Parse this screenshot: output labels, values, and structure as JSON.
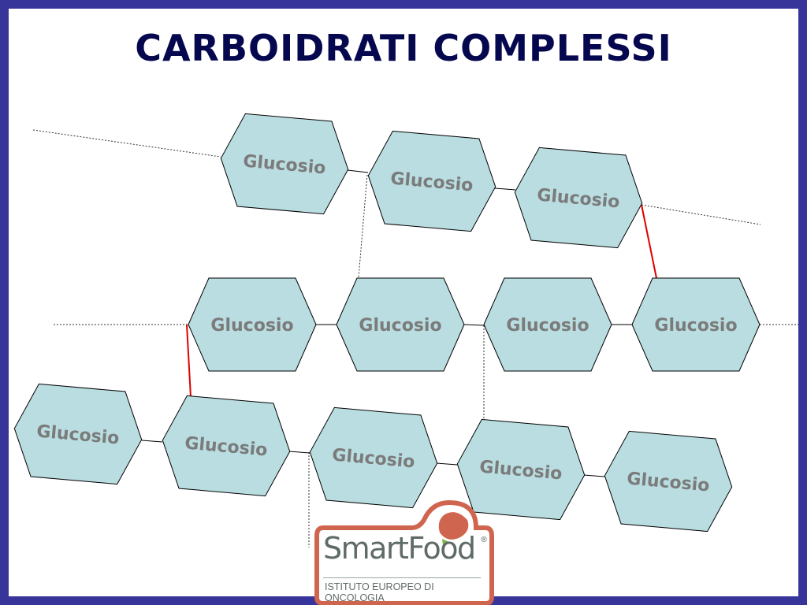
{
  "title": "CARBOIDRATI COMPLESSI",
  "diagram": {
    "node_label": "Glucosio",
    "rows": [
      [
        "Glucosio",
        "Glucosio",
        "Glucosio"
      ],
      [
        "Glucosio",
        "Glucosio",
        "Glucosio",
        "Glucosio"
      ],
      [
        "Glucosio",
        "Glucosio",
        "Glucosio",
        "Glucosio",
        "Glucosio"
      ]
    ],
    "colors": {
      "node_fill": "#b9dde1",
      "bond": "#000000",
      "branch_bond": "#e00000",
      "label": "#7b7b7b"
    }
  },
  "logo": {
    "brand": "SmartFood",
    "registered": "®",
    "subtitle": "ISTITUTO EUROPEO DI ONCOLOGIA",
    "colors": {
      "frame": "#d0654f",
      "text": "#5f6b66",
      "leaf": "#7ab648"
    }
  },
  "colors": {
    "border": "#37349a",
    "title": "#06084f"
  }
}
